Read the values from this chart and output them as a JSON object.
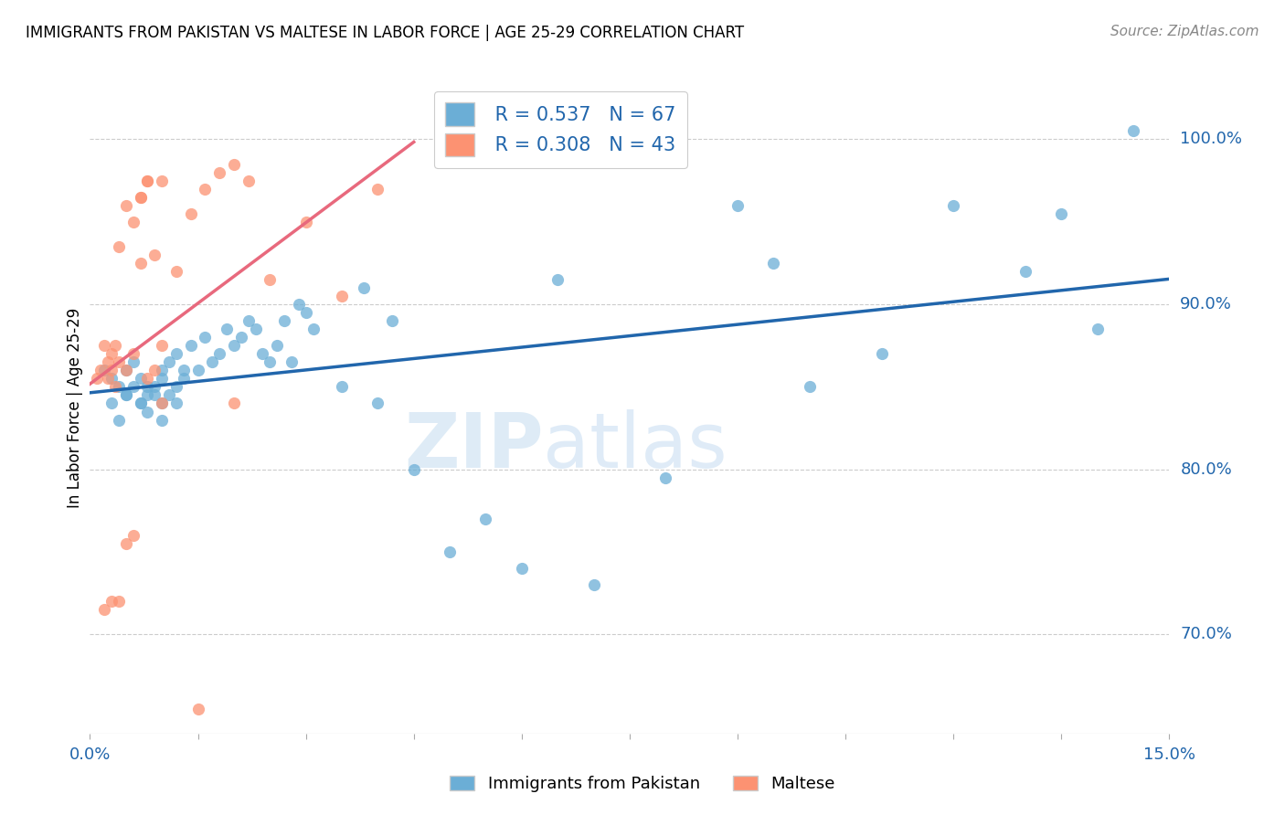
{
  "title": "IMMIGRANTS FROM PAKISTAN VS MALTESE IN LABOR FORCE | AGE 25-29 CORRELATION CHART",
  "source": "Source: ZipAtlas.com",
  "ylabel": "In Labor Force | Age 25-29",
  "xlim": [
    0.0,
    15.0
  ],
  "ylim": [
    64.0,
    103.5
  ],
  "blue_R": "0.537",
  "blue_N": "67",
  "pink_R": "0.308",
  "pink_N": "43",
  "blue_color": "#6baed6",
  "pink_color": "#fc9272",
  "blue_line_color": "#2166ac",
  "pink_line_color": "#e8697d",
  "watermark_zip": "ZIP",
  "watermark_atlas": "atlas",
  "ytick_vals": [
    70,
    80,
    90,
    100
  ],
  "blue_points_x": [
    0.3,
    0.4,
    0.5,
    0.5,
    0.6,
    0.7,
    0.7,
    0.8,
    0.8,
    0.9,
    0.9,
    1.0,
    1.0,
    1.0,
    1.1,
    1.1,
    1.2,
    1.2,
    1.3,
    1.3,
    1.4,
    1.5,
    1.6,
    1.7,
    1.8,
    1.9,
    2.0,
    2.1,
    2.2,
    2.3,
    2.4,
    2.5,
    2.6,
    2.7,
    2.8,
    2.9,
    3.0,
    3.1,
    3.5,
    3.8,
    4.0,
    4.2,
    4.5,
    5.0,
    5.5,
    6.0,
    6.5,
    7.0,
    8.0,
    9.0,
    9.5,
    10.0,
    11.0,
    12.0,
    13.0,
    13.5,
    14.0,
    14.5,
    0.2,
    0.3,
    0.4,
    0.5,
    0.6,
    0.7,
    0.8,
    1.0,
    1.2
  ],
  "blue_points_y": [
    85.5,
    85.0,
    86.0,
    84.5,
    86.5,
    85.5,
    84.0,
    85.0,
    83.5,
    85.0,
    84.5,
    86.0,
    85.5,
    84.0,
    86.5,
    84.5,
    87.0,
    85.0,
    86.0,
    85.5,
    87.5,
    86.0,
    88.0,
    86.5,
    87.0,
    88.5,
    87.5,
    88.0,
    89.0,
    88.5,
    87.0,
    86.5,
    87.5,
    89.0,
    86.5,
    90.0,
    89.5,
    88.5,
    85.0,
    91.0,
    84.0,
    89.0,
    80.0,
    75.0,
    77.0,
    74.0,
    91.5,
    73.0,
    79.5,
    96.0,
    92.5,
    85.0,
    87.0,
    96.0,
    92.0,
    95.5,
    88.5,
    100.5,
    86.0,
    84.0,
    83.0,
    84.5,
    85.0,
    84.0,
    84.5,
    83.0,
    84.0
  ],
  "pink_points_x": [
    0.1,
    0.15,
    0.2,
    0.25,
    0.25,
    0.3,
    0.3,
    0.35,
    0.35,
    0.4,
    0.4,
    0.5,
    0.5,
    0.6,
    0.6,
    0.7,
    0.7,
    0.8,
    0.8,
    0.9,
    1.0,
    1.0,
    1.2,
    1.4,
    1.6,
    1.8,
    2.0,
    2.2,
    2.5,
    3.0,
    3.5,
    4.0,
    0.2,
    0.3,
    0.4,
    0.5,
    0.6,
    0.7,
    0.8,
    0.9,
    1.0,
    1.5,
    2.0
  ],
  "pink_points_y": [
    85.5,
    86.0,
    87.5,
    86.5,
    85.5,
    87.0,
    86.0,
    87.5,
    85.0,
    93.5,
    86.5,
    86.0,
    96.0,
    95.0,
    87.0,
    92.5,
    96.5,
    97.5,
    97.5,
    93.0,
    97.5,
    87.5,
    92.0,
    95.5,
    97.0,
    98.0,
    98.5,
    97.5,
    91.5,
    95.0,
    90.5,
    97.0,
    71.5,
    72.0,
    72.0,
    75.5,
    76.0,
    96.5,
    85.5,
    86.0,
    84.0,
    65.5,
    84.0
  ]
}
